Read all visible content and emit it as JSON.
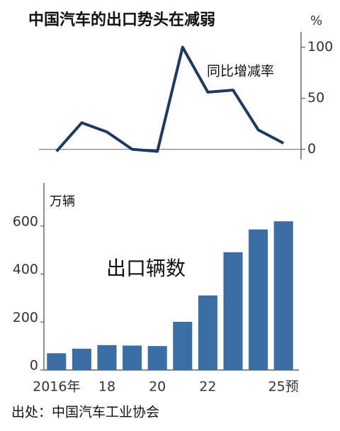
{
  "chart_data": [
    {
      "type": "line",
      "title": "中国汽车的出口势头在减弱",
      "unit": "%",
      "annotation": "同比增减率",
      "values": [
        -2,
        26,
        17,
        0,
        -2,
        100,
        56,
        58,
        19,
        6
      ],
      "color": "#1f3a5f",
      "ylim": [
        -10,
        115
      ],
      "yticks": [
        0,
        50,
        100
      ]
    },
    {
      "type": "bar",
      "unit": "万辆",
      "annotation": "出口辆数",
      "categories": [
        "2016年",
        null,
        "18",
        null,
        "20",
        null,
        "22",
        null,
        null,
        "25预"
      ],
      "values": [
        70,
        89,
        104,
        102,
        100,
        201,
        311,
        491,
        586,
        620
      ],
      "color": "#3a6ea5",
      "ylim": [
        0,
        780
      ],
      "yticks": [
        0,
        200,
        400,
        600
      ]
    }
  ],
  "source": "出处：中国汽车工业协会"
}
